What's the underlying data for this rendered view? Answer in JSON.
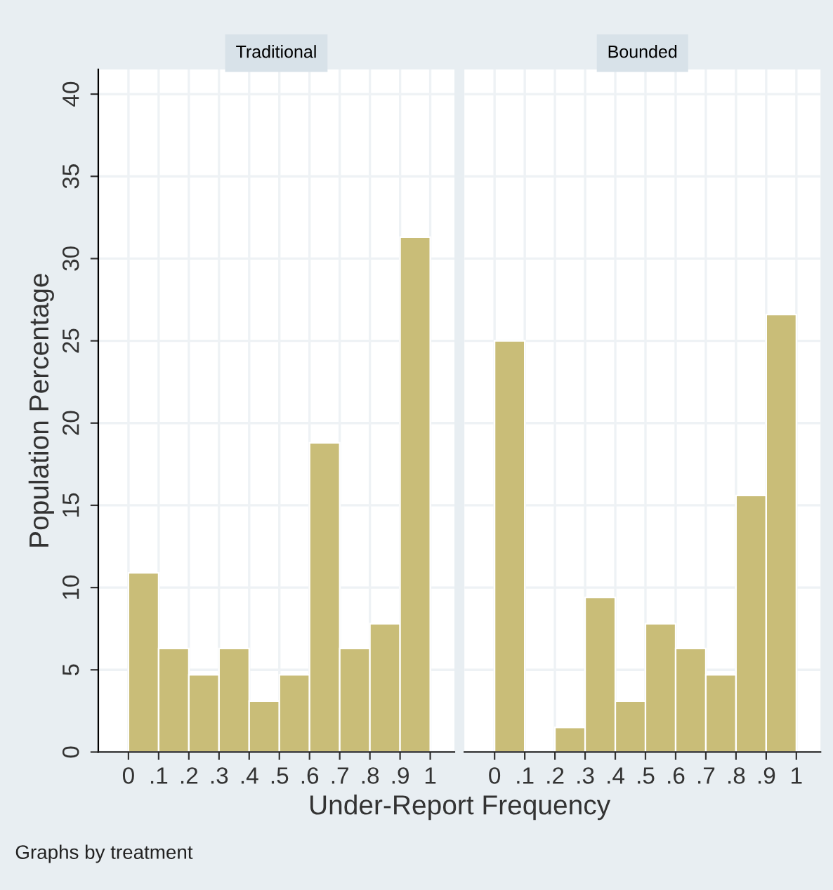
{
  "chart_data": [
    {
      "type": "histogram",
      "title": "Traditional",
      "ylabel": "Population Percentage",
      "xlabel": "Under-Report Frequency",
      "annotations": [
        "Graphs by treatment"
      ],
      "bins": [
        0,
        0.1,
        0.2,
        0.3,
        0.4,
        0.5,
        0.6,
        0.7,
        0.8,
        0.9,
        1
      ],
      "values": [
        10.9,
        6.3,
        4.7,
        6.3,
        3.1,
        4.7,
        18.8,
        6.3,
        7.8,
        31.3
      ],
      "color": "#c9bd78",
      "xlim": [
        -0.1,
        1.08
      ],
      "ylim": [
        0,
        41.5
      ],
      "xticks": [
        0,
        {
          "value": 0.1,
          "label": ".1"
        },
        {
          "value": 0.2,
          "label": ".2"
        },
        {
          "value": 0.3,
          "label": ".3"
        },
        {
          "value": 0.4,
          "label": ".4"
        },
        {
          "value": 0.5,
          "label": ".5"
        },
        {
          "value": 0.6,
          "label": ".6"
        },
        {
          "value": 0.7,
          "label": ".7"
        },
        {
          "value": 0.8,
          "label": ".8"
        },
        {
          "value": 0.9,
          "label": ".9"
        },
        1
      ],
      "yticks": [
        0,
        5,
        10,
        15,
        20,
        25,
        30,
        35,
        40
      ],
      "grid": true
    },
    {
      "type": "histogram",
      "title": "Bounded",
      "bins": [
        0,
        0.1,
        0.2,
        0.3,
        0.4,
        0.5,
        0.6,
        0.7,
        0.8,
        0.9,
        1
      ],
      "values": [
        25,
        0,
        1.5,
        9.4,
        3.1,
        7.8,
        6.3,
        4.7,
        15.6,
        26.6
      ],
      "color": "#c9bd78",
      "xlim": [
        -0.1,
        1.08
      ],
      "ylim": [
        0,
        41.5
      ],
      "xticks": [
        0,
        {
          "value": 0.1,
          "label": ".1"
        },
        {
          "value": 0.2,
          "label": ".2"
        },
        {
          "value": 0.3,
          "label": ".3"
        },
        {
          "value": 0.4,
          "label": ".4"
        },
        {
          "value": 0.5,
          "label": ".5"
        },
        {
          "value": 0.6,
          "label": ".6"
        },
        {
          "value": 0.7,
          "label": ".7"
        },
        {
          "value": 0.8,
          "label": ".8"
        },
        {
          "value": 0.9,
          "label": ".9"
        },
        1
      ],
      "yticks": [
        0,
        5,
        10,
        15,
        20,
        25,
        30,
        35,
        40
      ],
      "grid": true,
      "tick_labels": "x"
    }
  ]
}
